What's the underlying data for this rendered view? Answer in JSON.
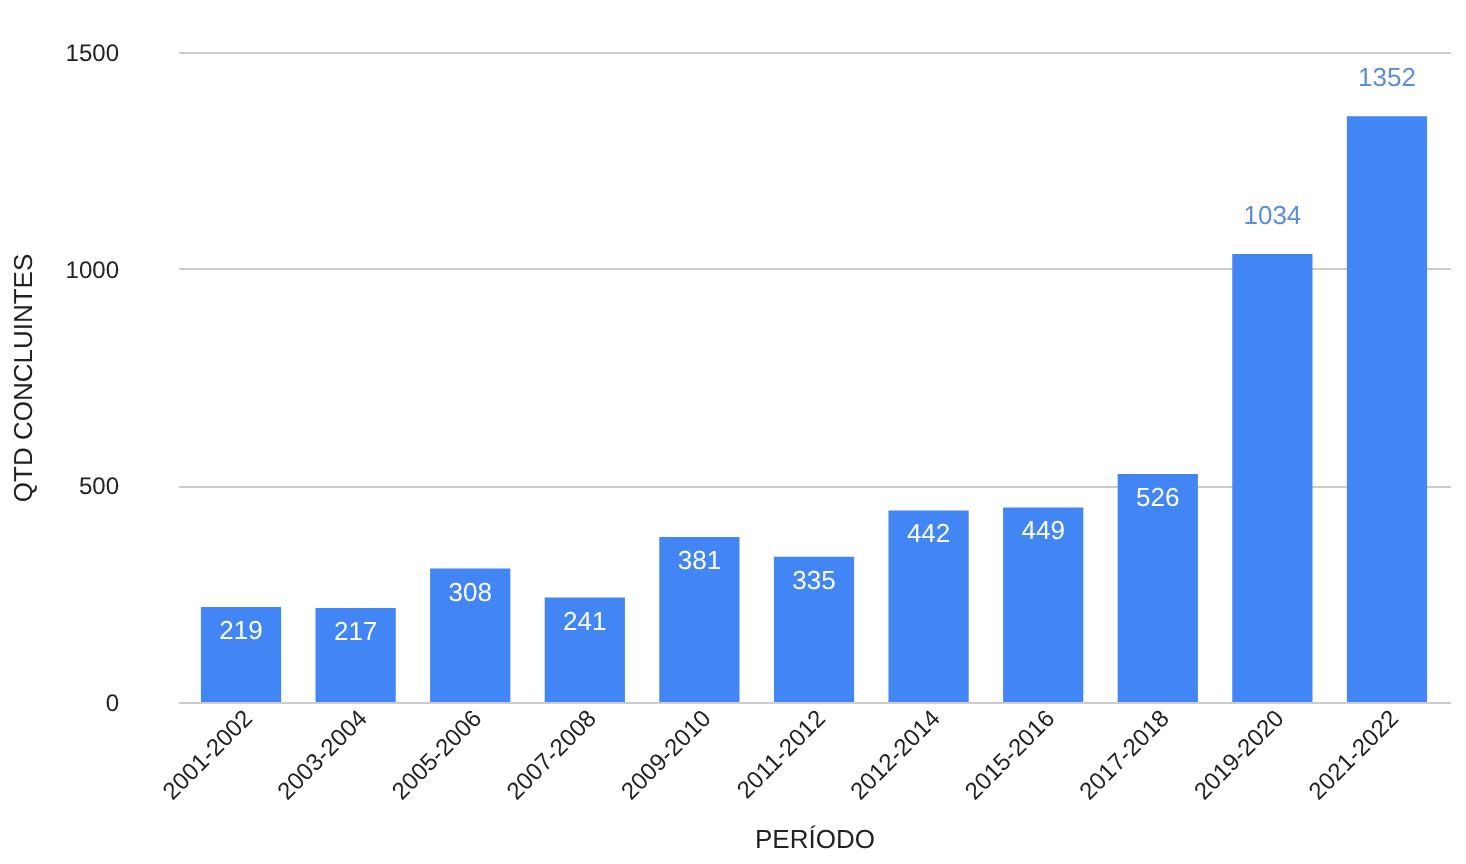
{
  "chart_data": {
    "type": "bar",
    "xlabel": "PERÍODO",
    "ylabel": "QTD CONCLUINTES",
    "categories": [
      "2001-2002",
      "2003-2004",
      "2005-2006",
      "2007-2008",
      "2009-2010",
      "2011-2012",
      "2012-2014",
      "2015-2016",
      "2017-2018",
      "2019-2020",
      "2021-2022"
    ],
    "values": [
      219,
      217,
      308,
      241,
      381,
      335,
      442,
      449,
      526,
      1034,
      1352
    ],
    "color": "#4285f4",
    "ylim": [
      0,
      1500
    ],
    "yticks": [
      0,
      500,
      1000,
      1500
    ],
    "grid": "y",
    "data_labels": true
  }
}
